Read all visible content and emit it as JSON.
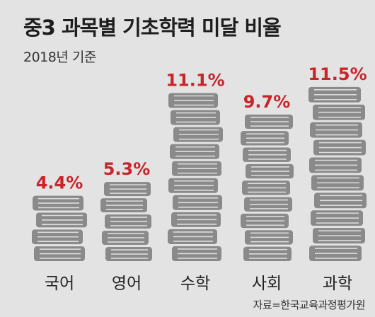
{
  "header": {
    "title": "중3 과목별 기초학력 미달 비율",
    "subtitle": "2018년 기준"
  },
  "source": "자료=한국교육과정평가원",
  "colors": {
    "background": "#e3e3e3",
    "value_label": "#c8252b",
    "book_fill": "#8a8a8a",
    "book_pages": "#dcdcdc",
    "axis_label": "#222222"
  },
  "chart_data": {
    "type": "bar",
    "title": "중3 과목별 기초학력 미달 비율",
    "subtitle": "2018년 기준",
    "xlabel": "",
    "ylabel": "",
    "categories": [
      "국어",
      "영어",
      "수학",
      "사회",
      "과학"
    ],
    "values": [
      4.4,
      5.3,
      11.1,
      9.7,
      11.5
    ],
    "value_labels": [
      "4.4%",
      "5.3%",
      "11.1%",
      "9.7%",
      "11.5%"
    ],
    "unit": "%",
    "ylim": [
      0,
      12
    ],
    "grid": false,
    "legend": "none",
    "style": "pictorial stacked books"
  }
}
